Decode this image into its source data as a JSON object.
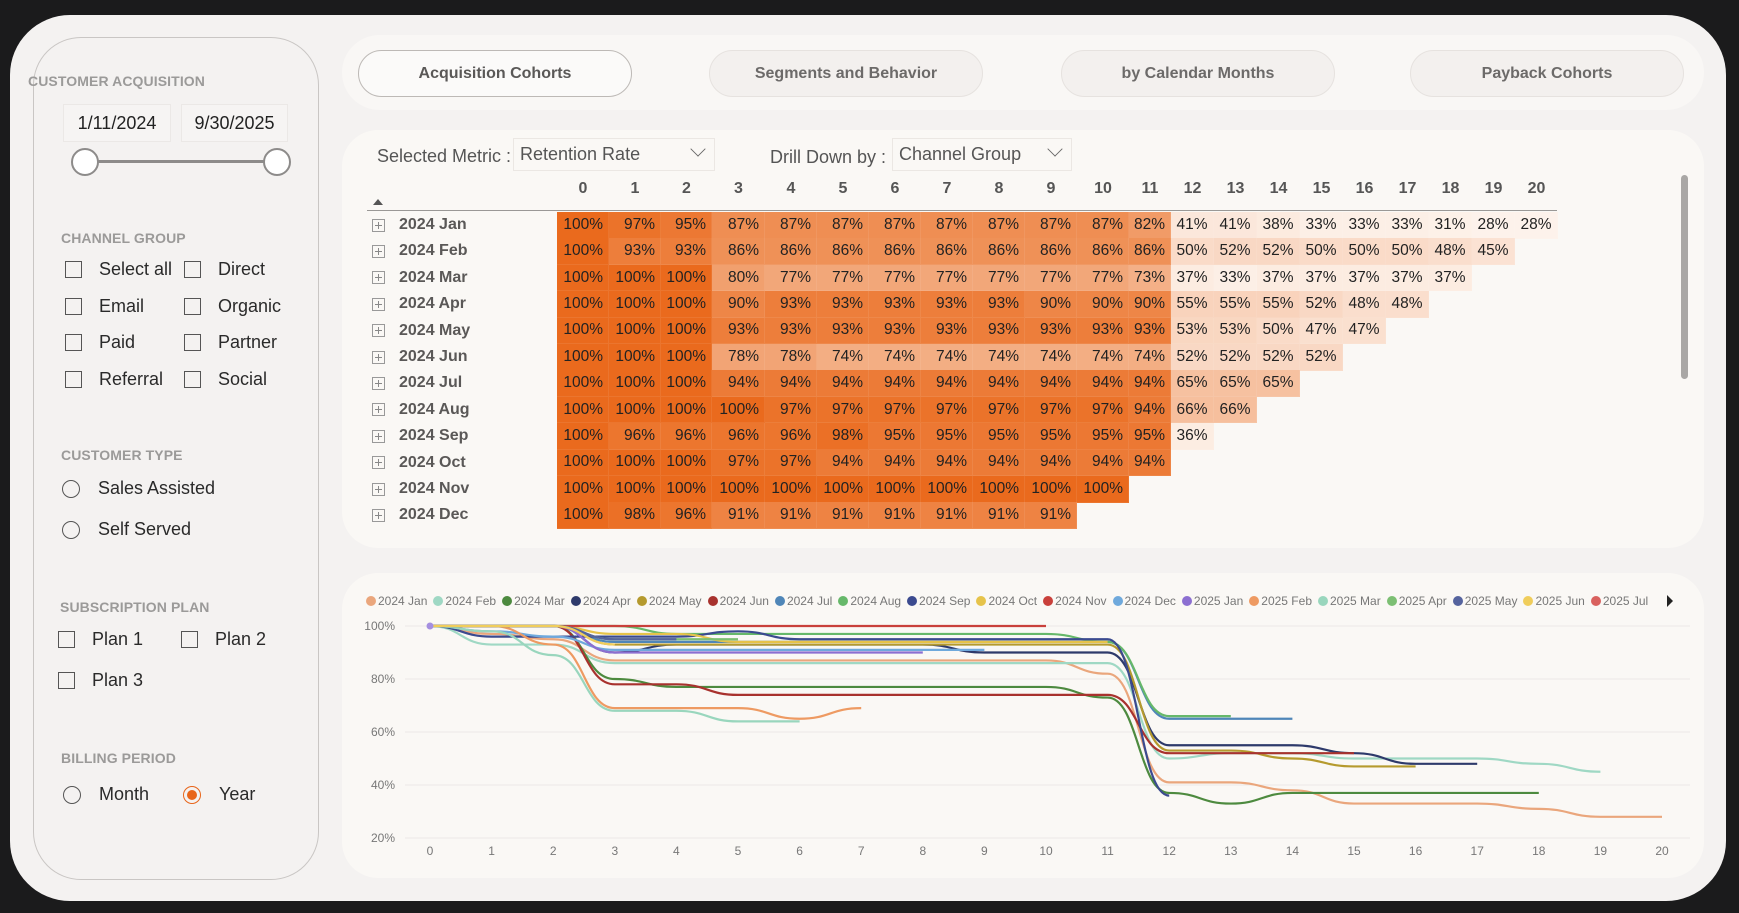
{
  "sidebar": {
    "customer_acquisition": {
      "title": "CUSTOMER ACQUISITION",
      "start_date": "1/11/2024",
      "end_date": "9/30/2025"
    },
    "channel_group": {
      "title": "CHANNEL GROUP",
      "options": [
        {
          "label": "Select all",
          "checked": false
        },
        {
          "label": "Direct",
          "checked": false
        },
        {
          "label": "Email",
          "checked": false
        },
        {
          "label": "Organic",
          "checked": false
        },
        {
          "label": "Paid",
          "checked": false
        },
        {
          "label": "Partner",
          "checked": false
        },
        {
          "label": "Referral",
          "checked": false
        },
        {
          "label": "Social",
          "checked": false
        }
      ]
    },
    "customer_type": {
      "title": "CUSTOMER TYPE",
      "options": [
        {
          "label": "Sales Assisted",
          "selected": false
        },
        {
          "label": "Self Served",
          "selected": false
        }
      ]
    },
    "subscription_plan": {
      "title": "SUBSCRIPTION PLAN",
      "options": [
        {
          "label": "Plan 1",
          "checked": false
        },
        {
          "label": "Plan 2",
          "checked": false
        },
        {
          "label": "Plan 3",
          "checked": false
        }
      ]
    },
    "billing_period": {
      "title": "BILLING PERIOD",
      "options": [
        {
          "label": "Month",
          "selected": false
        },
        {
          "label": "Year",
          "selected": true
        }
      ]
    }
  },
  "tabs": [
    {
      "label": "Acquisition Cohorts",
      "active": true
    },
    {
      "label": "Segments and Behavior",
      "active": false
    },
    {
      "label": "by Calendar Months",
      "active": false
    },
    {
      "label": "Payback Cohorts",
      "active": false
    }
  ],
  "controls": {
    "metric_label": "Selected Metric :",
    "metric_value": "Retention Rate",
    "drill_label": "Drill Down by :",
    "drill_value": "Channel Group"
  },
  "colors": {
    "accent": "#e8651a",
    "heat_high": "#ea6a1d",
    "heat_low": "#fdf3ec"
  },
  "matrix": {
    "columns": [
      "0",
      "1",
      "2",
      "3",
      "4",
      "5",
      "6",
      "7",
      "8",
      "9",
      "10",
      "11",
      "12",
      "13",
      "14",
      "15",
      "16",
      "17",
      "18",
      "19",
      "20"
    ],
    "rows": [
      {
        "label": "2024 Jan",
        "values": [
          "100%",
          "97%",
          "95%",
          "87%",
          "87%",
          "87%",
          "87%",
          "87%",
          "87%",
          "87%",
          "87%",
          "82%",
          "41%",
          "41%",
          "38%",
          "33%",
          "33%",
          "33%",
          "31%",
          "28%",
          "28%"
        ]
      },
      {
        "label": "2024 Feb",
        "values": [
          "100%",
          "93%",
          "93%",
          "86%",
          "86%",
          "86%",
          "86%",
          "86%",
          "86%",
          "86%",
          "86%",
          "86%",
          "50%",
          "52%",
          "52%",
          "50%",
          "50%",
          "50%",
          "48%",
          "45%"
        ]
      },
      {
        "label": "2024 Mar",
        "values": [
          "100%",
          "100%",
          "100%",
          "80%",
          "77%",
          "77%",
          "77%",
          "77%",
          "77%",
          "77%",
          "77%",
          "73%",
          "37%",
          "33%",
          "37%",
          "37%",
          "37%",
          "37%",
          "37%"
        ]
      },
      {
        "label": "2024 Apr",
        "values": [
          "100%",
          "100%",
          "100%",
          "90%",
          "93%",
          "93%",
          "93%",
          "93%",
          "93%",
          "90%",
          "90%",
          "90%",
          "55%",
          "55%",
          "55%",
          "52%",
          "48%",
          "48%"
        ]
      },
      {
        "label": "2024 May",
        "values": [
          "100%",
          "100%",
          "100%",
          "93%",
          "93%",
          "93%",
          "93%",
          "93%",
          "93%",
          "93%",
          "93%",
          "93%",
          "53%",
          "53%",
          "50%",
          "47%",
          "47%"
        ]
      },
      {
        "label": "2024 Jun",
        "values": [
          "100%",
          "100%",
          "100%",
          "78%",
          "78%",
          "74%",
          "74%",
          "74%",
          "74%",
          "74%",
          "74%",
          "74%",
          "52%",
          "52%",
          "52%",
          "52%"
        ]
      },
      {
        "label": "2024 Jul",
        "values": [
          "100%",
          "100%",
          "100%",
          "94%",
          "94%",
          "94%",
          "94%",
          "94%",
          "94%",
          "94%",
          "94%",
          "94%",
          "65%",
          "65%",
          "65%"
        ]
      },
      {
        "label": "2024 Aug",
        "values": [
          "100%",
          "100%",
          "100%",
          "100%",
          "97%",
          "97%",
          "97%",
          "97%",
          "97%",
          "97%",
          "97%",
          "94%",
          "66%",
          "66%"
        ]
      },
      {
        "label": "2024 Sep",
        "values": [
          "100%",
          "96%",
          "96%",
          "96%",
          "96%",
          "98%",
          "95%",
          "95%",
          "95%",
          "95%",
          "95%",
          "95%",
          "36%"
        ]
      },
      {
        "label": "2024 Oct",
        "values": [
          "100%",
          "100%",
          "100%",
          "97%",
          "97%",
          "94%",
          "94%",
          "94%",
          "94%",
          "94%",
          "94%",
          "94%"
        ]
      },
      {
        "label": "2024 Nov",
        "values": [
          "100%",
          "100%",
          "100%",
          "100%",
          "100%",
          "100%",
          "100%",
          "100%",
          "100%",
          "100%",
          "100%"
        ]
      },
      {
        "label": "2024 Dec",
        "values": [
          "100%",
          "98%",
          "96%",
          "91%",
          "91%",
          "91%",
          "91%",
          "91%",
          "91%",
          "91%"
        ]
      }
    ]
  },
  "chart_data": {
    "type": "line",
    "title": "",
    "xlabel": "",
    "ylabel": "",
    "x_ticks": [
      "0",
      "1",
      "2",
      "3",
      "4",
      "5",
      "6",
      "7",
      "8",
      "9",
      "10",
      "11",
      "12",
      "13",
      "14",
      "15",
      "16",
      "17",
      "18",
      "19",
      "20"
    ],
    "y_ticks": [
      "100%",
      "80%",
      "60%",
      "40%",
      "20%"
    ],
    "ylim": [
      20,
      100
    ],
    "xlim": [
      0,
      20
    ],
    "grid": true,
    "legend_position": "top",
    "series": [
      {
        "name": "2024 Jan",
        "color": "#eaa67c",
        "values": [
          100,
          97,
          95,
          87,
          87,
          87,
          87,
          87,
          87,
          87,
          87,
          82,
          41,
          41,
          38,
          33,
          33,
          33,
          31,
          28,
          28
        ]
      },
      {
        "name": "2024 Feb",
        "color": "#9fd8c4",
        "values": [
          100,
          93,
          93,
          86,
          86,
          86,
          86,
          86,
          86,
          86,
          86,
          86,
          50,
          52,
          52,
          50,
          50,
          50,
          48,
          45
        ]
      },
      {
        "name": "2024 Mar",
        "color": "#4d8a3f",
        "values": [
          100,
          100,
          100,
          80,
          77,
          77,
          77,
          77,
          77,
          77,
          77,
          73,
          37,
          33,
          37,
          37,
          37,
          37,
          37
        ]
      },
      {
        "name": "2024 Apr",
        "color": "#2e3a6b",
        "values": [
          100,
          100,
          100,
          90,
          93,
          93,
          93,
          93,
          93,
          90,
          90,
          90,
          55,
          55,
          55,
          52,
          48,
          48
        ]
      },
      {
        "name": "2024 May",
        "color": "#b59a2e",
        "values": [
          100,
          100,
          100,
          93,
          93,
          93,
          93,
          93,
          93,
          93,
          93,
          93,
          53,
          53,
          50,
          47,
          47
        ]
      },
      {
        "name": "2024 Jun",
        "color": "#a8322e",
        "values": [
          100,
          100,
          100,
          78,
          78,
          74,
          74,
          74,
          74,
          74,
          74,
          74,
          52,
          52,
          52,
          52
        ]
      },
      {
        "name": "2024 Jul",
        "color": "#4f86b8",
        "values": [
          100,
          100,
          100,
          94,
          94,
          94,
          94,
          94,
          94,
          94,
          94,
          94,
          65,
          65,
          65
        ]
      },
      {
        "name": "2024 Aug",
        "color": "#66b86a",
        "values": [
          100,
          100,
          100,
          100,
          97,
          97,
          97,
          97,
          97,
          97,
          97,
          94,
          66,
          66
        ]
      },
      {
        "name": "2024 Sep",
        "color": "#3b4a8f",
        "values": [
          100,
          96,
          96,
          96,
          96,
          98,
          95,
          95,
          95,
          95,
          95,
          95,
          36
        ]
      },
      {
        "name": "2024 Oct",
        "color": "#e6c34a",
        "values": [
          100,
          100,
          100,
          97,
          97,
          94,
          94,
          94,
          94,
          94,
          94,
          94
        ]
      },
      {
        "name": "2024 Nov",
        "color": "#c9403b",
        "values": [
          100,
          100,
          100,
          100,
          100,
          100,
          100,
          100,
          100,
          100,
          100
        ]
      },
      {
        "name": "2024 Dec",
        "color": "#6fa9dc",
        "values": [
          100,
          98,
          96,
          91,
          91,
          91,
          91,
          91,
          91,
          91
        ]
      },
      {
        "name": "2025 Jan",
        "color": "#8c6fd1",
        "values": [
          100,
          100,
          100,
          90,
          90,
          90,
          90,
          90,
          90
        ]
      },
      {
        "name": "2025 Feb",
        "color": "#ee9a62",
        "values": [
          100,
          100,
          93,
          69,
          69,
          69,
          65,
          69
        ]
      },
      {
        "name": "2025 Mar",
        "color": "#99d6bd",
        "values": [
          100,
          98,
          89,
          68,
          68,
          64,
          64
        ]
      },
      {
        "name": "2025 Apr",
        "color": "#7cbf73",
        "values": [
          100,
          100,
          100,
          95,
          95,
          95
        ]
      },
      {
        "name": "2025 May",
        "color": "#55639e",
        "values": [
          100,
          100,
          100,
          95,
          95
        ]
      },
      {
        "name": "2025 Jun",
        "color": "#f0cd5b",
        "values": [
          100,
          100,
          100,
          93
        ]
      },
      {
        "name": "2025 Jul",
        "color": "#d9615e",
        "values": [
          100
        ]
      }
    ]
  }
}
